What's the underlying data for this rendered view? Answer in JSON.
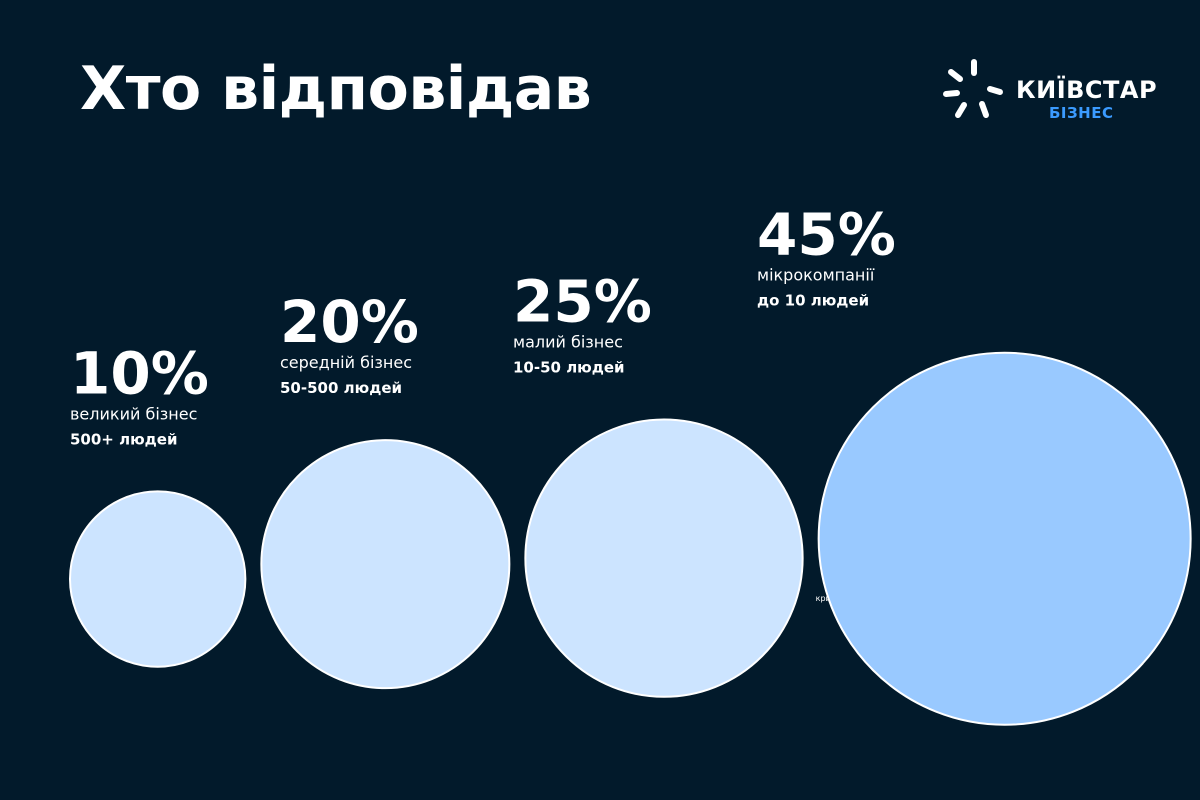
{
  "page": {
    "title": "Хто відповідав",
    "background_color": "#021a2b"
  },
  "logo": {
    "name": "КИЇВСТАР",
    "subtitle": "БІЗНЕС",
    "icon": "kyivstar-star-icon",
    "accent_color": "#3b9bff"
  },
  "chart_data": {
    "type": "bubble",
    "title": "Хто відповідав",
    "unit": "%",
    "categories": [
      "великий бізнес",
      "середній бізнес",
      "малий бізнес",
      "мікрокомпанії"
    ],
    "sublabels": [
      "500+ людей",
      "50-500 людей",
      "10-50 людей",
      "до 10 людей"
    ],
    "values": [
      10,
      20,
      25,
      45
    ],
    "value_labels": [
      "10%",
      "20%",
      "25%",
      "45%"
    ],
    "colors": [
      "#cce4ff",
      "#cce4ff",
      "#cce4ff",
      "#99c9ff"
    ],
    "annotation": "крим",
    "legend": "none",
    "grid": false
  }
}
